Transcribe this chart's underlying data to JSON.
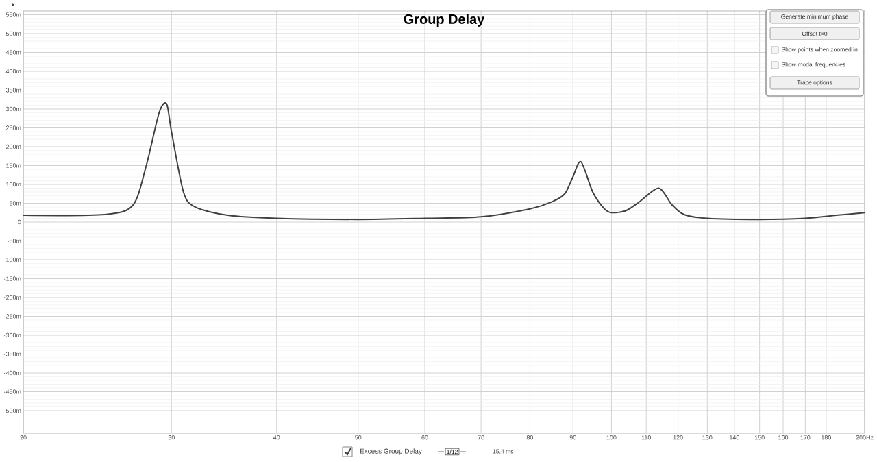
{
  "chart_data": {
    "type": "line",
    "title": "Group Delay",
    "ylabel": "s",
    "x": [
      20,
      25,
      27,
      28,
      29,
      29.6,
      30,
      31,
      32,
      35,
      40,
      50,
      60,
      70,
      80,
      85,
      88,
      90,
      92,
      95,
      98,
      100,
      104,
      108,
      113.8,
      118,
      122,
      130,
      150,
      170,
      185,
      200
    ],
    "series": [
      {
        "name": "Excess Group Delay",
        "color": "#404040",
        "values": [
          18,
          20,
          45,
          150,
          290,
          314,
          240,
          80,
          40,
          18,
          10,
          7,
          10,
          14,
          35,
          54,
          75,
          120,
          160,
          80,
          36,
          25,
          30,
          54,
          90,
          46,
          20,
          10,
          7,
          10,
          18,
          25
        ]
      }
    ],
    "log": "x",
    "xlim": [
      20,
      200
    ],
    "xticks": [
      20,
      30,
      40,
      50,
      60,
      70,
      80,
      90,
      100,
      110,
      120,
      130,
      140,
      150,
      160,
      170,
      180,
      {
        "value": 200,
        "label": "200Hz"
      }
    ],
    "ylim": [
      -560,
      560
    ],
    "yticks": [
      {
        "value": -500,
        "label": "-500m"
      },
      {
        "value": -450,
        "label": "-450m"
      },
      {
        "value": -400,
        "label": "-400m"
      },
      {
        "value": -350,
        "label": "-350m"
      },
      {
        "value": -300,
        "label": "-300m"
      },
      {
        "value": -250,
        "label": "-250m"
      },
      {
        "value": -200,
        "label": "-200m"
      },
      {
        "value": -150,
        "label": "-150m"
      },
      {
        "value": -100,
        "label": "-100m"
      },
      {
        "value": -50,
        "label": "-50m"
      },
      0,
      {
        "value": 50,
        "label": "50m"
      },
      {
        "value": 100,
        "label": "100m"
      },
      {
        "value": 150,
        "label": "150m"
      },
      {
        "value": 200,
        "label": "200m"
      },
      {
        "value": 250,
        "label": "250m"
      },
      {
        "value": 300,
        "label": "300m"
      },
      {
        "value": 350,
        "label": "350m"
      },
      {
        "value": 400,
        "label": "400m"
      },
      {
        "value": 450,
        "label": "450m"
      },
      {
        "value": 500,
        "label": "500m"
      },
      {
        "value": 550,
        "label": "550m"
      }
    ],
    "grid": true,
    "legend": "bottom",
    "line_style": "solid",
    "marker": "none",
    "annotations": [
      "Generate minimum phase",
      "Offset t=0",
      "Show points when zoomed in",
      "Show modal frequencies",
      "Trace options",
      "1/12",
      "15,4 ms"
    ]
  }
}
